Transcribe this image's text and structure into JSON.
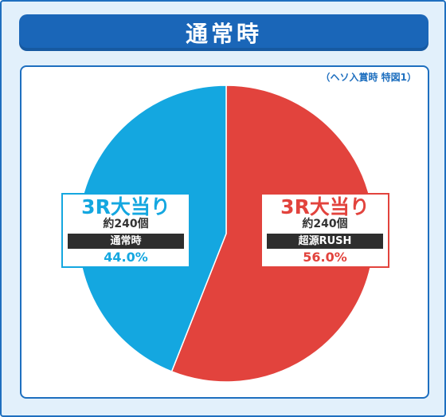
{
  "header": {
    "title": "通常時"
  },
  "note": "（ヘソ入賞時 特図1）",
  "colors": {
    "left": "#14a7e0",
    "right": "#e2433d",
    "frame": "#1e6fbf"
  },
  "chart_data": {
    "type": "pie",
    "slices": [
      {
        "label": "3R大当り",
        "count": "約240個",
        "mode": "超源RUSH",
        "value": 56.0,
        "value_label": "56.0%",
        "color": "#e2433d"
      },
      {
        "label": "3R大当り",
        "count": "約240個",
        "mode": "通常時",
        "value": 44.0,
        "value_label": "44.0%",
        "color": "#14a7e0"
      }
    ]
  }
}
